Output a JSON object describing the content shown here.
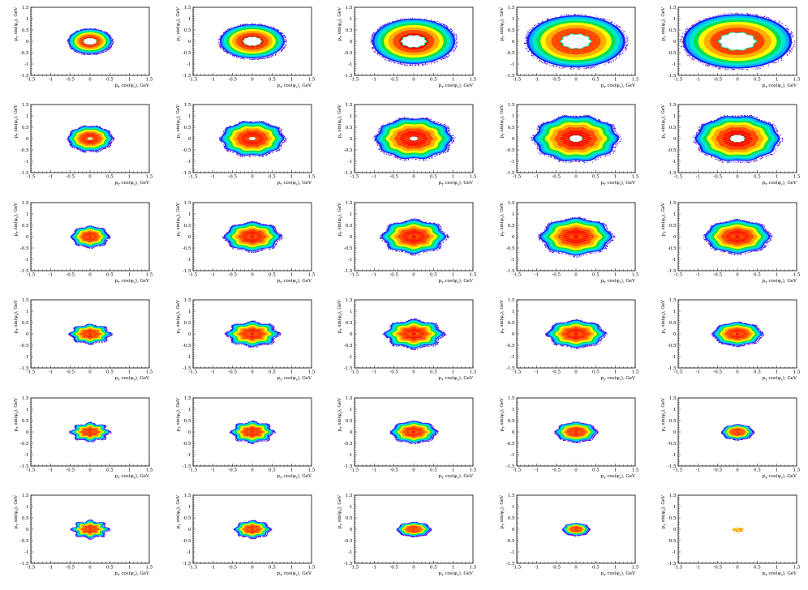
{
  "figure": {
    "rows": 6,
    "cols": 5,
    "palette": [
      "#6a00b8",
      "#1e1eff",
      "#00c8ff",
      "#00e050",
      "#ffff00",
      "#ffb000",
      "#ff4500",
      "#ff0000"
    ]
  },
  "chart_data": {
    "type": "heatmap",
    "panel_count": 30,
    "xlim": [
      -1.5,
      1.5
    ],
    "ylim": [
      -1.5,
      1.5
    ],
    "x_ticks": [
      "-1.5",
      "-1",
      "-0.5",
      "0",
      "0.5",
      "1",
      "1.5"
    ],
    "y_ticks": [
      "1.5",
      "1",
      "0.5",
      "0",
      "-0.5",
      "-1",
      "-1.5"
    ],
    "xlabel": "p_T cos(φ_s), GeV",
    "ylabel": "p_T sin(φ_s), GeV",
    "xlabel_parts": {
      "pre": "p",
      "sub1": "T",
      "mid": " cos(φ",
      "sub2": "s",
      "post": "), GeV"
    },
    "ylabel_parts": {
      "pre": "p",
      "sub1": "T",
      "mid": " sin(φ",
      "sub2": "s",
      "post": "), GeV"
    },
    "panels": [
      {
        "row": 0,
        "col": 0,
        "rx": 0.55,
        "ry": 0.55,
        "hole": 0.16,
        "lobes": 0,
        "amp": 0
      },
      {
        "row": 0,
        "col": 1,
        "rx": 0.82,
        "ry": 0.75,
        "hole": 0.22,
        "lobes": 0,
        "amp": 0
      },
      {
        "row": 0,
        "col": 2,
        "rx": 1.05,
        "ry": 1.0,
        "hole": 0.3,
        "lobes": 0,
        "amp": 0
      },
      {
        "row": 0,
        "col": 3,
        "rx": 1.25,
        "ry": 1.15,
        "hole": 0.36,
        "lobes": 0,
        "amp": 0
      },
      {
        "row": 0,
        "col": 4,
        "rx": 1.38,
        "ry": 1.2,
        "hole": 0.44,
        "lobes": 0,
        "amp": 0
      },
      {
        "row": 1,
        "col": 0,
        "rx": 0.55,
        "ry": 0.55,
        "hole": 0.06,
        "lobes": 10,
        "amp": 0.04
      },
      {
        "row": 1,
        "col": 1,
        "rx": 0.78,
        "ry": 0.75,
        "hole": 0.08,
        "lobes": 10,
        "amp": 0.04
      },
      {
        "row": 1,
        "col": 2,
        "rx": 0.95,
        "ry": 0.9,
        "hole": 0.1,
        "lobes": 10,
        "amp": 0.04
      },
      {
        "row": 1,
        "col": 3,
        "rx": 1.05,
        "ry": 1.0,
        "hole": 0.16,
        "lobes": 10,
        "amp": 0.04
      },
      {
        "row": 1,
        "col": 4,
        "rx": 1.05,
        "ry": 1.0,
        "hole": 0.18,
        "lobes": 10,
        "amp": 0.03
      },
      {
        "row": 2,
        "col": 0,
        "rx": 0.45,
        "ry": 0.45,
        "hole": 0.0,
        "lobes": 8,
        "amp": 0.06
      },
      {
        "row": 2,
        "col": 1,
        "rx": 0.68,
        "ry": 0.62,
        "hole": 0.0,
        "lobes": 8,
        "amp": 0.06
      },
      {
        "row": 2,
        "col": 2,
        "rx": 0.78,
        "ry": 0.72,
        "hole": 0.0,
        "lobes": 8,
        "amp": 0.06
      },
      {
        "row": 2,
        "col": 3,
        "rx": 0.88,
        "ry": 0.8,
        "hole": 0.0,
        "lobes": 8,
        "amp": 0.05
      },
      {
        "row": 2,
        "col": 4,
        "rx": 0.8,
        "ry": 0.72,
        "hole": 0.0,
        "lobes": 8,
        "amp": 0.04
      },
      {
        "row": 3,
        "col": 0,
        "rx": 0.48,
        "ry": 0.4,
        "hole": 0.0,
        "lobes": 8,
        "amp": 0.09
      },
      {
        "row": 3,
        "col": 1,
        "rx": 0.62,
        "ry": 0.52,
        "hole": 0.0,
        "lobes": 8,
        "amp": 0.09
      },
      {
        "row": 3,
        "col": 2,
        "rx": 0.7,
        "ry": 0.6,
        "hole": 0.0,
        "lobes": 8,
        "amp": 0.08
      },
      {
        "row": 3,
        "col": 3,
        "rx": 0.7,
        "ry": 0.58,
        "hole": 0.0,
        "lobes": 8,
        "amp": 0.06
      },
      {
        "row": 3,
        "col": 4,
        "rx": 0.6,
        "ry": 0.5,
        "hole": 0.0,
        "lobes": 8,
        "amp": 0.04
      },
      {
        "row": 4,
        "col": 0,
        "rx": 0.45,
        "ry": 0.38,
        "hole": 0.0,
        "lobes": 8,
        "amp": 0.12
      },
      {
        "row": 4,
        "col": 1,
        "rx": 0.5,
        "ry": 0.44,
        "hole": 0.0,
        "lobes": 8,
        "amp": 0.1
      },
      {
        "row": 4,
        "col": 2,
        "rx": 0.55,
        "ry": 0.46,
        "hole": 0.0,
        "lobes": 8,
        "amp": 0.06
      },
      {
        "row": 4,
        "col": 3,
        "rx": 0.5,
        "ry": 0.42,
        "hole": 0.0,
        "lobes": 8,
        "amp": 0.05
      },
      {
        "row": 4,
        "col": 4,
        "rx": 0.38,
        "ry": 0.32,
        "hole": 0.0,
        "lobes": 8,
        "amp": 0.04
      },
      {
        "row": 5,
        "col": 0,
        "rx": 0.42,
        "ry": 0.36,
        "hole": 0.0,
        "lobes": 8,
        "amp": 0.14
      },
      {
        "row": 5,
        "col": 1,
        "rx": 0.42,
        "ry": 0.36,
        "hole": 0.0,
        "lobes": 8,
        "amp": 0.08
      },
      {
        "row": 5,
        "col": 2,
        "rx": 0.4,
        "ry": 0.3,
        "hole": 0.0,
        "lobes": 8,
        "amp": 0.05
      },
      {
        "row": 5,
        "col": 3,
        "rx": 0.32,
        "ry": 0.26,
        "hole": 0.0,
        "lobes": 8,
        "amp": 0.04
      },
      {
        "row": 5,
        "col": 4,
        "rx": 0.14,
        "ry": 0.1,
        "hole": 0.0,
        "lobes": 0,
        "amp": 0.0,
        "sparse": true
      }
    ]
  }
}
